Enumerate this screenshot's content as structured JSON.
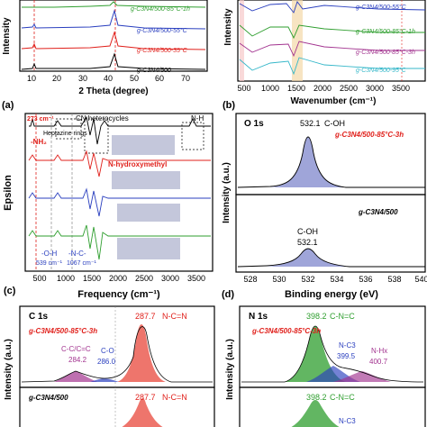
{
  "figure": {
    "panels": {
      "a": {
        "letter": "(a)",
        "xlabel": "2 Theta (degree)",
        "ylabel": "Intensity",
        "ticks": [
          "10",
          "20",
          "30",
          "40",
          "50",
          "60",
          "70"
        ],
        "series": [
          "g-C3N4/500-85°C-1h",
          "g-C3N4/500-55°C",
          "g-C3N4/500-35°C",
          "g-C3N4/500"
        ]
      },
      "b": {
        "letter": "(b)",
        "xlabel": "Wavenumber (cm⁻¹)",
        "ylabel": "Intensity",
        "ticks": [
          "500",
          "1000",
          "1500",
          "2000",
          "2500",
          "3000",
          "3500"
        ],
        "series": [
          "g-C3N4/500-55°C",
          "g-C3N4/500-85°C-1h",
          "g-C3N4/500-85°C-3h",
          "g-C3N4/500-95°C"
        ]
      },
      "c": {
        "letter": "(c)",
        "xlabel": "Frequency (cm⁻¹)",
        "ylabel": "Epsilon",
        "ticks": [
          "500",
          "1000",
          "1500",
          "2000",
          "2500",
          "3000",
          "3500"
        ],
        "annotations": {
          "wn273": "273 cm⁻¹",
          "nh2": "-NH₂",
          "heptazine": "Heptazine rings",
          "cn_het": "CN heterocycles",
          "nh": "N-H",
          "nhydroxymethyl": "N-hydroxymethyl",
          "oh": "-O-H",
          "wn539": "539 cm⁻¹",
          "nc": "-N-C-",
          "wn1067": "1067 cm⁻¹"
        }
      },
      "o1s": {
        "letter": "(b)",
        "title": "O 1s",
        "xlabel": "Binding energy (eV)",
        "ylabel": "Intensity (a.u.)",
        "ticks": [
          "528",
          "530",
          "532",
          "534",
          "536",
          "538",
          "540"
        ],
        "top": {
          "peak": "532.1",
          "label": "C-OH",
          "sample": "g-C3N4/500-85°C-3h"
        },
        "bottom": {
          "peak": "532.1",
          "label": "C-OH",
          "sample": "g-C3N4/500"
        }
      },
      "c1s": {
        "letter": "(c)",
        "title": "C 1s",
        "ylabel": "Intensity (a.u.)",
        "top": {
          "sample": "g-C3N4/500-85°C-3h",
          "p1": "287.7",
          "p1_label": "N-C=N",
          "p2_label": "C-C/C=C",
          "p2": "284.2",
          "p3_label": "C-O",
          "p3": "286.0"
        },
        "bottom": {
          "sample": "g-C3N4/500",
          "p1": "287.7",
          "p1_label": "N-C=N"
        }
      },
      "n1s": {
        "letter": "(d)",
        "title": "N 1s",
        "ylabel": "Intensity (a.u.)",
        "top": {
          "sample": "g-C3N4/500-85°C-3h",
          "p1": "398.2",
          "p1_label": "C-N=C",
          "p2_label": "N-C3",
          "p2": "399.5",
          "p3_label": "N-Hx",
          "p3": "400.7"
        },
        "bottom": {
          "p1": "398.2",
          "p1_label": "C-N=C",
          "p2_label": "N-C3"
        }
      }
    },
    "colors": {
      "black": "#000000",
      "red": "#e0201b",
      "green": "#2e9e2e",
      "blue": "#2a3fbf",
      "purple": "#a2338f",
      "cyan": "#35b7c9",
      "fillblue": "#6b74c4",
      "fillred": "#e8473b"
    }
  }
}
